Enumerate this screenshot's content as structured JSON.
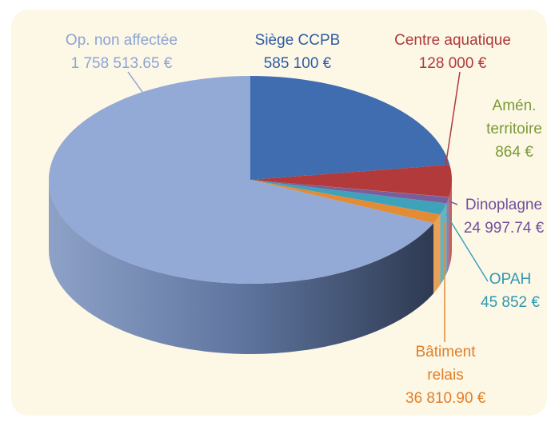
{
  "chart_data": {
    "type": "pie",
    "categories": [
      "Siège CCPB",
      "Centre aquatique",
      "Amén. territoire",
      "Dinoplagne",
      "OPAH",
      "Bâtiment relais",
      "Op. non affectée"
    ],
    "values": [
      585100,
      128000,
      864,
      24997.74,
      45852,
      36810.9,
      1758513.65
    ],
    "value_labels": [
      "585 100 €",
      "128 000 €",
      "864 €",
      "24 997.74 €",
      "45 852 €",
      "36 810.90 €",
      "1 758 513.65 €"
    ],
    "colors": [
      "#3f6db0",
      "#b23a3b",
      "#86a044",
      "#7b5c9d",
      "#3ea2bb",
      "#e38b35",
      "#93a9d6"
    ],
    "label_colors": [
      "#2f5da3",
      "#b0383a",
      "#7a9a38",
      "#70509a",
      "#2f97b0",
      "#e07f28",
      "#8aa5d4"
    ]
  }
}
